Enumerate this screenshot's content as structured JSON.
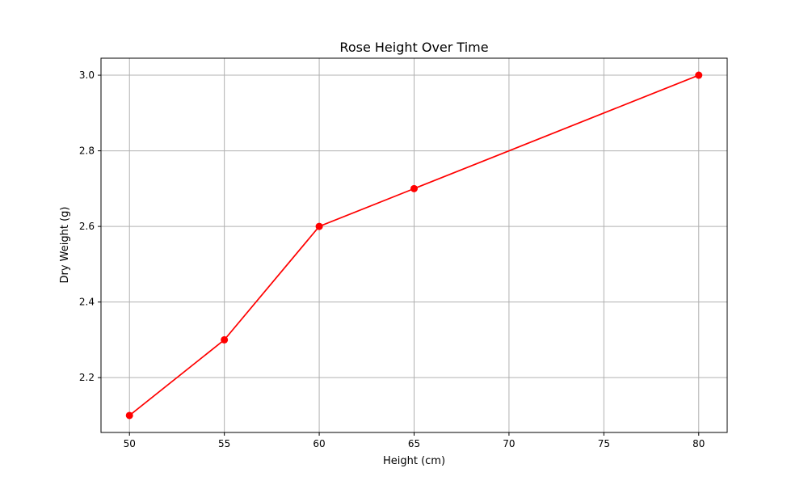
{
  "chart_data": {
    "type": "line",
    "title": "Rose Height Over Time",
    "xlabel": "Height (cm)",
    "ylabel": "Dry Weight (g)",
    "xlim": [
      48.5,
      81.5
    ],
    "ylim": [
      2.055,
      3.045
    ],
    "x_ticks": [
      50,
      55,
      60,
      65,
      70,
      75,
      80
    ],
    "y_ticks": [
      2.2,
      2.4,
      2.6,
      2.8,
      3.0
    ],
    "y_tick_labels": [
      "2.2",
      "2.4",
      "2.6",
      "2.8",
      "3.0"
    ],
    "grid": true,
    "series": [
      {
        "x": [
          50,
          55,
          60,
          65,
          80
        ],
        "y": [
          2.1,
          2.3,
          2.6,
          2.7,
          3.0
        ],
        "color": "#ff0000",
        "marker": "circle"
      }
    ]
  }
}
